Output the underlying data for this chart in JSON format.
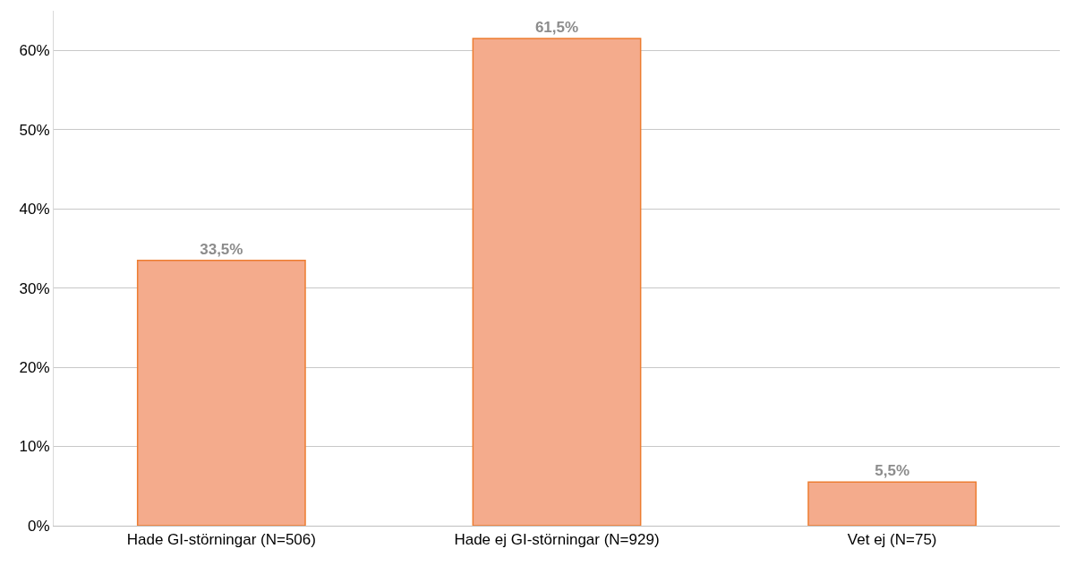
{
  "chart_data": {
    "type": "bar",
    "categories": [
      "Hade GI-störningar (N=506)",
      "Hade ej GI-störningar (N=929)",
      "Vet ej (N=75)"
    ],
    "values": [
      33.5,
      61.5,
      5.5
    ],
    "value_labels": [
      "33,5%",
      "61,5%",
      "5,5%"
    ],
    "color": "#f4ab8c",
    "ylim": [
      0,
      65
    ],
    "yticks": [
      {
        "value": 0,
        "label": "0%"
      },
      {
        "value": 10,
        "label": "10%"
      },
      {
        "value": 20,
        "label": "20%"
      },
      {
        "value": 30,
        "label": "30%"
      },
      {
        "value": 40,
        "label": "40%"
      },
      {
        "value": 50,
        "label": "50%"
      },
      {
        "value": 60,
        "label": "60%"
      }
    ],
    "grid": "y"
  }
}
